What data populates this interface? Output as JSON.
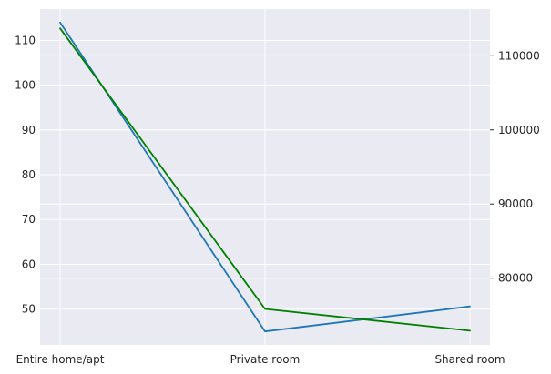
{
  "chart_data": {
    "type": "line",
    "categories": [
      "Entire home/apt",
      "Private room",
      "Shared room"
    ],
    "grid": true,
    "legend": "none",
    "colors": {
      "background": "#eaeaf2",
      "grid": "#ffffff"
    },
    "axes": {
      "left": {
        "ylim": [
          42.0,
          117.0
        ],
        "ticks": [
          "50",
          "60",
          "70",
          "80",
          "90",
          "100",
          "110"
        ]
      },
      "right": {
        "ylim": [
          71000,
          116300
        ],
        "ticks": [
          "80000",
          "90000",
          "100000",
          "110000"
        ]
      }
    },
    "series": [
      {
        "axis": "left",
        "color": "#1f77b4",
        "values": [
          114.0,
          45.0,
          50.6
        ]
      },
      {
        "axis": "right",
        "color": "#008000",
        "values": [
          113700,
          75850,
          72910
        ]
      }
    ]
  }
}
